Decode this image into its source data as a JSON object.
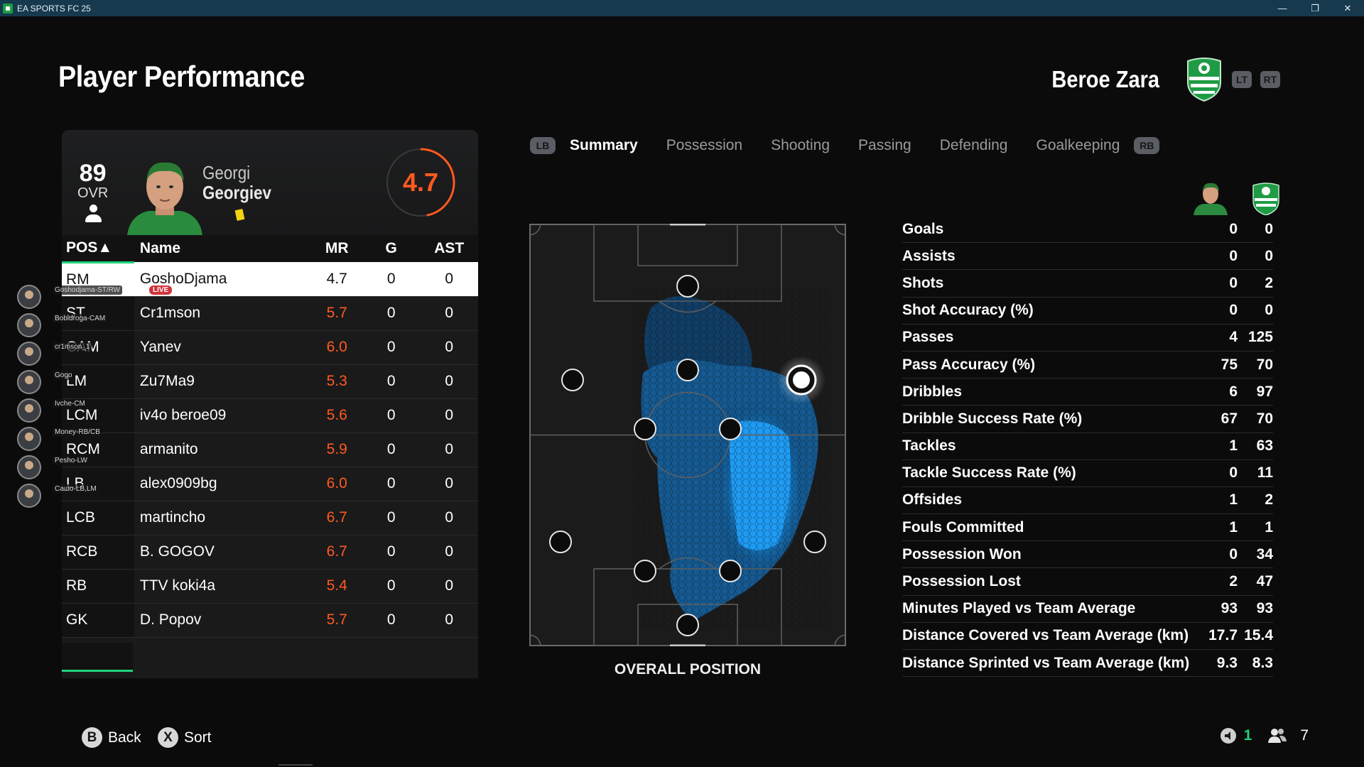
{
  "window": {
    "title": "EA SPORTS FC 25",
    "controls": [
      "—",
      "❐",
      "✕"
    ]
  },
  "page": {
    "title": "Player Performance"
  },
  "team": {
    "name": "Beroe Zara",
    "lt_label": "LT",
    "rt_label": "RT",
    "crest_color": "#1f9b45"
  },
  "player": {
    "ovr": "89",
    "ovr_label": "OVR",
    "first_name": "Georgi",
    "last_name": "Georgiev",
    "rating": "4.7",
    "rating_color": "#ff5a1f"
  },
  "tabs": {
    "lb": "LB",
    "rb": "RB",
    "items": [
      "Summary",
      "Possession",
      "Shooting",
      "Passing",
      "Defending",
      "Goalkeeping"
    ],
    "active": "Summary"
  },
  "roster": {
    "headers": {
      "pos": "POS▲",
      "name": "Name",
      "mr": "MR",
      "g": "G",
      "ast": "AST"
    },
    "rows": [
      {
        "pos": "RM",
        "name": "GoshoDjama",
        "mr": "4.7",
        "g": "0",
        "ast": "0",
        "selected": true
      },
      {
        "pos": "ST",
        "name": "Cr1mson",
        "mr": "5.7",
        "g": "0",
        "ast": "0"
      },
      {
        "pos": "CAM",
        "name": "Yanev",
        "mr": "6.0",
        "g": "0",
        "ast": "0"
      },
      {
        "pos": "LM",
        "name": "Zu7Ma9",
        "mr": "5.3",
        "g": "0",
        "ast": "0"
      },
      {
        "pos": "LCM",
        "name": "iv4o beroe09",
        "mr": "5.6",
        "g": "0",
        "ast": "0"
      },
      {
        "pos": "RCM",
        "name": "armanito",
        "mr": "5.9",
        "g": "0",
        "ast": "0"
      },
      {
        "pos": "LB",
        "name": "alex0909bg",
        "mr": "6.0",
        "g": "0",
        "ast": "0"
      },
      {
        "pos": "LCB",
        "name": "martincho",
        "mr": "6.7",
        "g": "0",
        "ast": "0"
      },
      {
        "pos": "RCB",
        "name": "B. GOGOV",
        "mr": "6.7",
        "g": "0",
        "ast": "0"
      },
      {
        "pos": "RB",
        "name": "TTV koki4a",
        "mr": "5.4",
        "g": "0",
        "ast": "0"
      },
      {
        "pos": "GK",
        "name": "D. Popov",
        "mr": "5.7",
        "g": "0",
        "ast": "0"
      }
    ]
  },
  "party": {
    "live_label": "LIVE",
    "members": [
      "Goshodjama-ST/RW",
      "Bobidroga-CAM",
      "cr1mson_1",
      "Gogo",
      "Ivche-CM",
      "Money-RB/CB",
      "Pesho-LW",
      "Сашо-LB,LM"
    ]
  },
  "pitch": {
    "label": "OVERALL POSITION"
  },
  "stats": [
    {
      "label": "Goals",
      "player": "0",
      "team": "0"
    },
    {
      "label": "Assists",
      "player": "0",
      "team": "0"
    },
    {
      "label": "Shots",
      "player": "0",
      "team": "2"
    },
    {
      "label": "Shot Accuracy (%)",
      "player": "0",
      "team": "0"
    },
    {
      "label": "Passes",
      "player": "4",
      "team": "125"
    },
    {
      "label": "Pass Accuracy (%)",
      "player": "75",
      "team": "70"
    },
    {
      "label": "Dribbles",
      "player": "6",
      "team": "97"
    },
    {
      "label": "Dribble Success Rate (%)",
      "player": "67",
      "team": "70"
    },
    {
      "label": "Tackles",
      "player": "1",
      "team": "63"
    },
    {
      "label": "Tackle Success Rate (%)",
      "player": "0",
      "team": "11"
    },
    {
      "label": "Offsides",
      "player": "1",
      "team": "2"
    },
    {
      "label": "Fouls Committed",
      "player": "1",
      "team": "1"
    },
    {
      "label": "Possession Won",
      "player": "0",
      "team": "34"
    },
    {
      "label": "Possession Lost",
      "player": "2",
      "team": "47"
    },
    {
      "label": "Minutes Played vs Team Average",
      "player": "93",
      "team": "93"
    },
    {
      "label": "Distance Covered vs Team Average (km)",
      "player": "17.7",
      "team": "15.4"
    },
    {
      "label": "Distance Sprinted vs Team Average (km)",
      "player": "9.3",
      "team": "8.3"
    }
  ],
  "footer": {
    "back_button": "B",
    "back_label": "Back",
    "sort_button": "X",
    "sort_label": "Sort",
    "network_count": "1",
    "players_count": "7"
  }
}
